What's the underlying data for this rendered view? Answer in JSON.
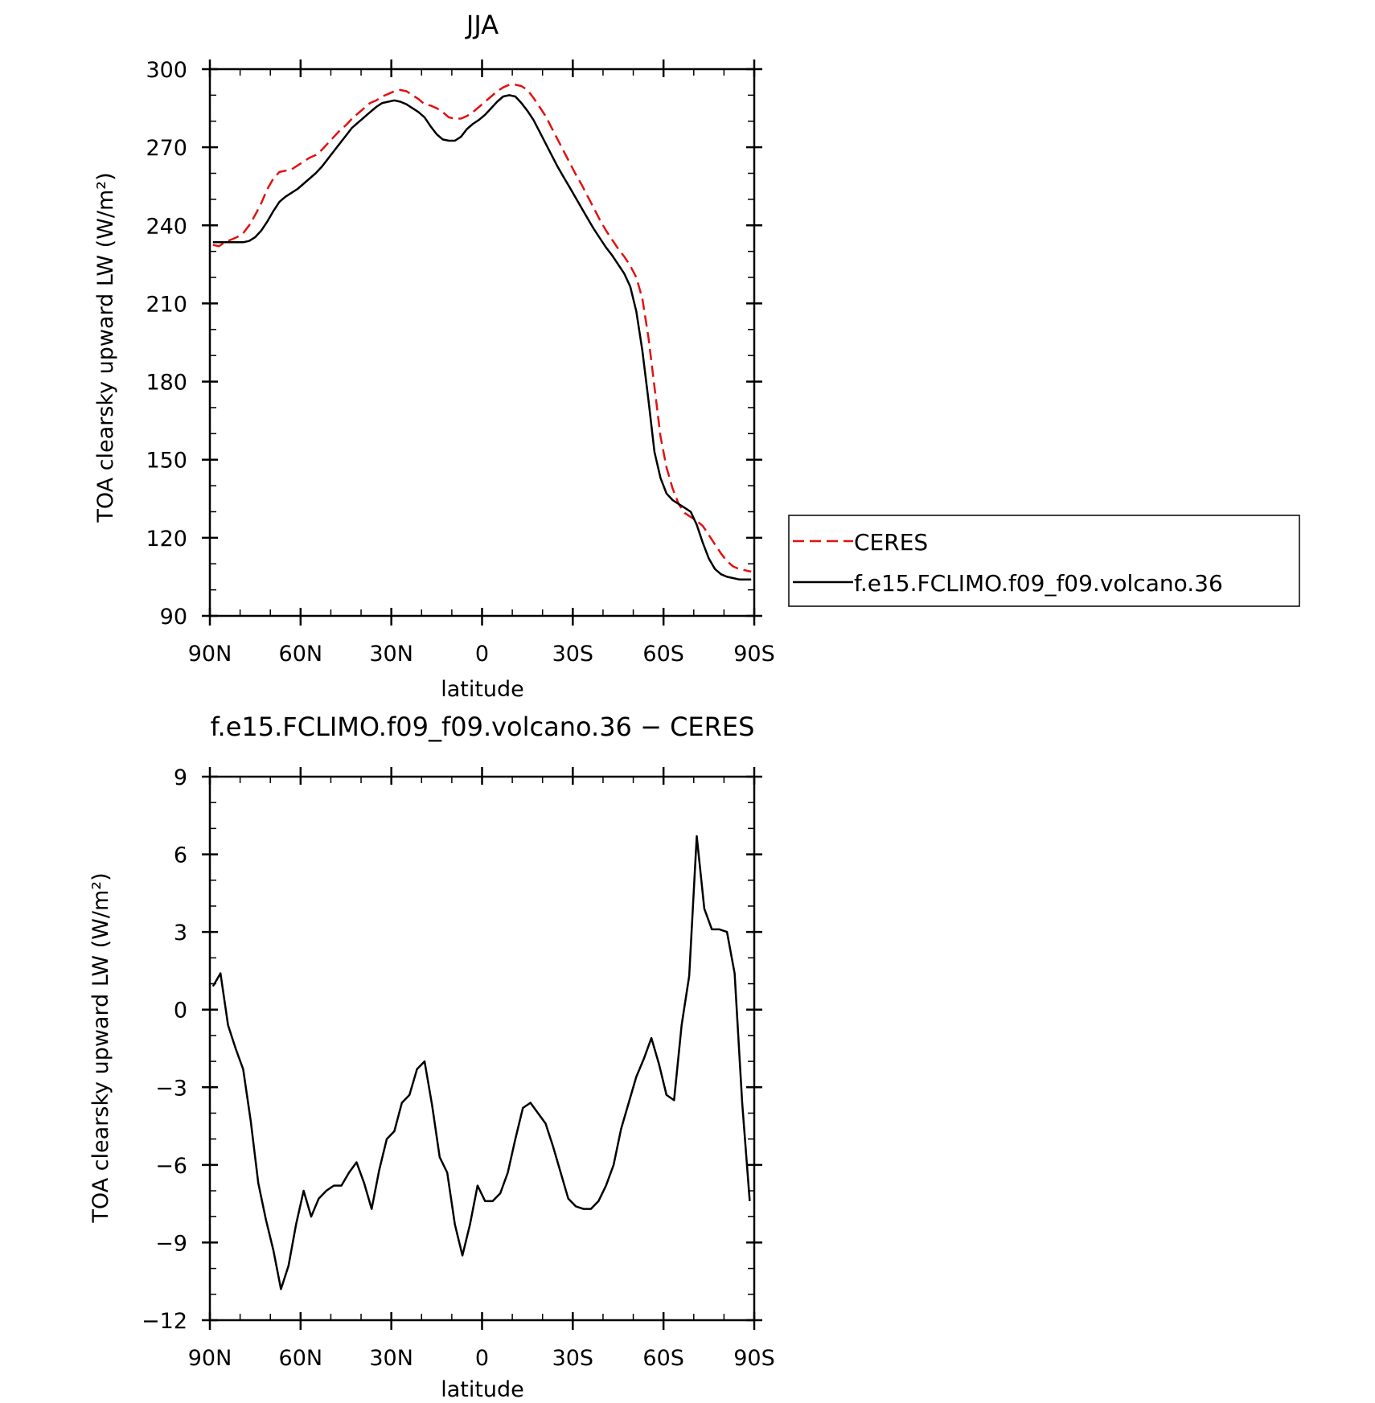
{
  "colors": {
    "ceres": "#e41010",
    "model": "#000000",
    "axis": "#000000"
  },
  "chart_data": [
    {
      "type": "line",
      "title": "JJA",
      "xlabel": "latitude",
      "ylabel": "TOA clearsky upward LW (W/m²)",
      "xlim": [
        90,
        -90
      ],
      "ylim": [
        90,
        300
      ],
      "xticks": [
        90,
        60,
        30,
        0,
        -30,
        -60,
        -90
      ],
      "xtick_labels": [
        "90N",
        "60N",
        "30N",
        "0",
        "30S",
        "60S",
        "90S"
      ],
      "yticks": [
        90,
        120,
        150,
        180,
        210,
        240,
        270,
        300
      ],
      "ytick_labels": [
        "90",
        "120",
        "150",
        "180",
        "210",
        "240",
        "270",
        "300"
      ],
      "y_minor_step": 10,
      "x_minor_step": 10,
      "legend": {
        "position": "right",
        "entries": [
          "CERES",
          "f.e15.FCLIMO.f09_f09.volcano.36"
        ]
      },
      "grid": false,
      "series": [
        {
          "name": "CERES",
          "style": "dashed",
          "x": [
            89,
            87,
            85,
            83,
            81,
            79,
            77,
            75,
            73,
            71,
            69,
            67,
            65,
            63,
            61,
            59,
            57,
            55,
            53,
            51,
            49,
            47,
            45,
            43,
            41,
            39,
            37,
            35,
            33,
            31,
            29,
            27,
            25,
            23,
            21,
            19,
            17,
            15,
            13,
            11,
            9,
            7,
            5,
            3,
            1,
            -1,
            -3,
            -5,
            -7,
            -9,
            -11,
            -13,
            -15,
            -17,
            -19,
            -21,
            -23,
            -25,
            -27,
            -29,
            -31,
            -33,
            -35,
            -37,
            -39,
            -41,
            -43,
            -45,
            -47,
            -49,
            -51,
            -53,
            -55,
            -57,
            -59,
            -61,
            -63,
            -65,
            -67,
            -69,
            -71,
            -73,
            -75,
            -77,
            -79,
            -81,
            -83,
            -85,
            -87,
            -89
          ],
          "values": [
            232.5,
            232,
            233.5,
            234.5,
            235.5,
            237,
            240,
            244,
            248.5,
            254,
            258,
            260.5,
            261,
            261.5,
            263,
            264.5,
            266,
            267,
            269,
            271.5,
            274,
            276.5,
            278.5,
            281,
            283,
            285,
            287,
            288,
            289.5,
            290.5,
            291.5,
            292,
            291.5,
            290,
            288.5,
            286.5,
            286,
            285,
            283.5,
            281.5,
            281,
            281,
            282,
            283.5,
            285.5,
            287.5,
            289.5,
            291.5,
            293,
            294,
            294,
            293.5,
            292,
            289,
            285.5,
            282,
            277.5,
            273,
            268.5,
            264,
            259.5,
            255.5,
            251,
            246.5,
            242,
            238,
            234.5,
            231,
            228,
            224.5,
            220,
            212,
            197,
            178,
            159,
            147,
            139,
            133,
            129.5,
            128,
            126.5,
            124.5,
            121,
            117.5,
            114,
            111,
            109,
            108,
            107.5,
            107
          ]
        },
        {
          "name": "f.e15.FCLIMO.f09_f09.volcano.36",
          "style": "solid",
          "x": [
            89,
            87,
            85,
            83,
            81,
            79,
            77,
            75,
            73,
            71,
            69,
            67,
            65,
            63,
            61,
            59,
            57,
            55,
            53,
            51,
            49,
            47,
            45,
            43,
            41,
            39,
            37,
            35,
            33,
            31,
            29,
            27,
            25,
            23,
            21,
            19,
            17,
            15,
            13,
            11,
            9,
            7,
            5,
            3,
            1,
            -1,
            -3,
            -5,
            -7,
            -9,
            -11,
            -13,
            -15,
            -17,
            -19,
            -21,
            -23,
            -25,
            -27,
            -29,
            -31,
            -33,
            -35,
            -37,
            -39,
            -41,
            -43,
            -45,
            -47,
            -49,
            -51,
            -53,
            -55,
            -57,
            -59,
            -61,
            -63,
            -65,
            -67,
            -69,
            -71,
            -73,
            -75,
            -77,
            -79,
            -81,
            -83,
            -85,
            -87,
            -89
          ],
          "values": [
            233.5,
            233.5,
            233.5,
            233.5,
            233.5,
            233.5,
            234,
            235.5,
            238,
            241.5,
            245.5,
            249,
            251,
            252.5,
            254,
            256,
            258,
            260,
            262.5,
            265.5,
            268.5,
            271.5,
            274.5,
            277.5,
            279.5,
            281.5,
            283.5,
            285.5,
            287,
            287.5,
            288,
            287.5,
            286.5,
            285,
            283.5,
            281.5,
            278,
            275,
            273,
            272.5,
            272.5,
            274,
            277,
            279,
            280.5,
            282.5,
            285,
            287.5,
            289.5,
            290,
            289.5,
            287,
            284,
            280.5,
            276,
            271.5,
            267,
            262.5,
            258.5,
            254.5,
            250.5,
            246.5,
            242.5,
            238.5,
            235,
            231.5,
            228.5,
            225,
            221.5,
            216.5,
            207,
            192,
            173,
            153,
            143,
            137,
            134.5,
            133,
            131.5,
            130,
            125,
            118,
            112,
            108,
            106,
            105,
            104.5,
            104,
            104,
            104
          ]
        }
      ]
    },
    {
      "type": "line",
      "title": "f.e15.FCLIMO.f09_f09.volcano.36 − CERES",
      "xlabel": "latitude",
      "ylabel": "TOA clearsky upward LW (W/m²)",
      "xlim": [
        90,
        -90
      ],
      "ylim": [
        -12,
        9
      ],
      "xticks": [
        90,
        60,
        30,
        0,
        -30,
        -60,
        -90
      ],
      "xtick_labels": [
        "90N",
        "60N",
        "30N",
        "0",
        "30S",
        "60S",
        "90S"
      ],
      "yticks": [
        -12,
        -9,
        -6,
        -3,
        0,
        3,
        6,
        9
      ],
      "ytick_labels": [
        "−12",
        "−9",
        "−6",
        "−3",
        "0",
        "3",
        "6",
        "9"
      ],
      "y_minor_step": 1,
      "x_minor_step": 10,
      "grid": false,
      "series": [
        {
          "style": "solid",
          "x": [
            89,
            86.5,
            84,
            81.5,
            79,
            76.5,
            74,
            71.5,
            69,
            66.5,
            64,
            61.5,
            59,
            56.5,
            54,
            51.5,
            49,
            46.5,
            44,
            41.5,
            39,
            36.5,
            34,
            31.5,
            29,
            26.5,
            24,
            21.5,
            19,
            16.5,
            14,
            11.5,
            9,
            6.5,
            4,
            1.5,
            -1,
            -3.5,
            -6,
            -8.5,
            -11,
            -13.5,
            -16,
            -18.5,
            -21,
            -23.5,
            -26,
            -28.5,
            -31,
            -33.5,
            -36,
            -38.5,
            -41,
            -43.5,
            -46,
            -48.5,
            -51,
            -53.5,
            -56,
            -58.5,
            -61,
            -63.5,
            -66,
            -68.5,
            -71,
            -73.5,
            -76,
            -78.5,
            -81,
            -83.5,
            -86,
            -88.5
          ],
          "values": [
            0.9,
            1.4,
            -0.6,
            -1.5,
            -2.3,
            -4.3,
            -6.7,
            -8.1,
            -9.3,
            -10.8,
            -9.9,
            -8.3,
            -7.0,
            -8.0,
            -7.3,
            -7.0,
            -6.8,
            -6.8,
            -6.3,
            -5.9,
            -6.7,
            -7.7,
            -6.2,
            -5.0,
            -4.7,
            -3.6,
            -3.3,
            -2.3,
            -2.0,
            -3.7,
            -5.7,
            -6.3,
            -8.3,
            -9.5,
            -8.3,
            -6.8,
            -7.4,
            -7.4,
            -7.1,
            -6.3,
            -5.0,
            -3.8,
            -3.6,
            -4.0,
            -4.4,
            -5.3,
            -6.3,
            -7.3,
            -7.6,
            -7.7,
            -7.7,
            -7.4,
            -6.8,
            -6.0,
            -4.6,
            -3.6,
            -2.6,
            -1.9,
            -1.1,
            -2.1,
            -3.3,
            -3.5,
            -0.6,
            1.3,
            6.7,
            3.9,
            3.1,
            3.1,
            3.0,
            1.4,
            -3.6,
            -7.4
          ]
        }
      ]
    }
  ]
}
